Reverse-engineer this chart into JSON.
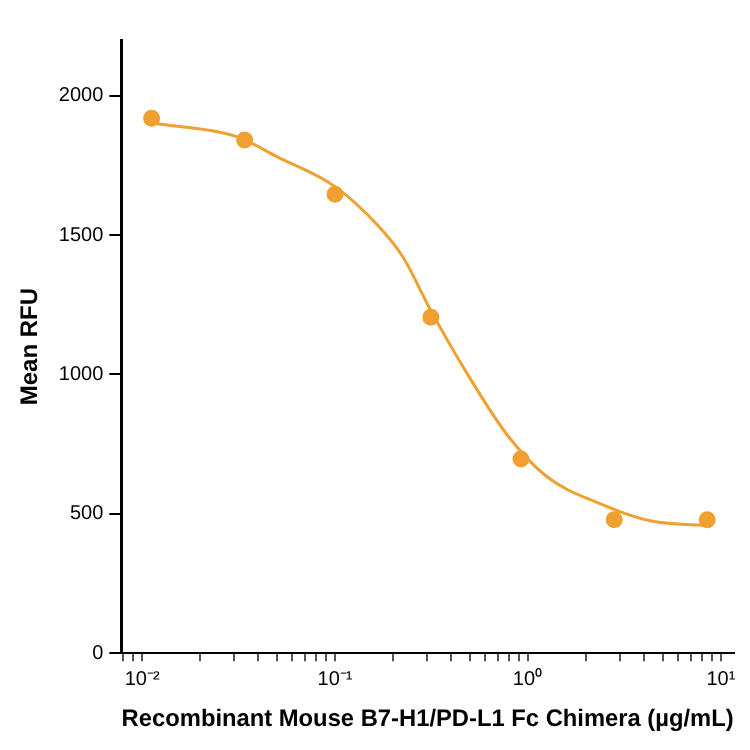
{
  "chart_data": {
    "type": "scatter",
    "xlabel": "Recombinant Mouse B7-H1/PD-L1 Fc Chimera (µg/mL)",
    "ylabel": "Mean RFU",
    "log": "x",
    "grid": false,
    "legend": false,
    "marker": "circle",
    "xlim": [
      0.0078,
      11.7
    ],
    "ylim": [
      0,
      2200
    ],
    "xticks": [
      {
        "value": 0.008,
        "label": null
      },
      {
        "value": 0.009,
        "label": null
      },
      {
        "value": 0.01,
        "label": "10⁻²"
      },
      {
        "value": 0.02,
        "label": null
      },
      {
        "value": 0.03,
        "label": null
      },
      {
        "value": 0.04,
        "label": null
      },
      {
        "value": 0.05,
        "label": null
      },
      {
        "value": 0.06,
        "label": null
      },
      {
        "value": 0.07,
        "label": null
      },
      {
        "value": 0.08,
        "label": null
      },
      {
        "value": 0.09,
        "label": null
      },
      {
        "value": 0.1,
        "label": "10⁻¹"
      },
      {
        "value": 0.2,
        "label": null
      },
      {
        "value": 0.3,
        "label": null
      },
      {
        "value": 0.4,
        "label": null
      },
      {
        "value": 0.5,
        "label": null
      },
      {
        "value": 0.6,
        "label": null
      },
      {
        "value": 0.7,
        "label": null
      },
      {
        "value": 0.8,
        "label": null
      },
      {
        "value": 0.9,
        "label": null
      },
      {
        "value": 1,
        "label": "10⁰"
      },
      {
        "value": 2,
        "label": null
      },
      {
        "value": 3,
        "label": null
      },
      {
        "value": 4,
        "label": null
      },
      {
        "value": 5,
        "label": null
      },
      {
        "value": 6,
        "label": null
      },
      {
        "value": 7,
        "label": null
      },
      {
        "value": 8,
        "label": null
      },
      {
        "value": 9,
        "label": null
      },
      {
        "value": 10,
        "label": "10¹"
      }
    ],
    "yticks": [
      0,
      500,
      1000,
      1500,
      2000
    ],
    "series": [
      {
        "color": "#f0a030",
        "x": [
          0.0112,
          0.034,
          0.1,
          0.314,
          0.92,
          2.8,
          8.5
        ],
        "values": [
          1919,
          1841,
          1647,
          1205,
          697,
          479,
          479
        ]
      },
      {
        "type": "line",
        "color": "#f0a030",
        "marker": "none",
        "x": [
          0.0112,
          0.0304,
          0.0505,
          0.1,
          0.166,
          0.226,
          0.314,
          0.493,
          0.785,
          1.25,
          2.33,
          4.36,
          8.9
        ],
        "values": [
          1902,
          1855,
          1780,
          1674,
          1536,
          1419,
          1229,
          994,
          781,
          634,
          538,
          474,
          457
        ]
      }
    ]
  }
}
